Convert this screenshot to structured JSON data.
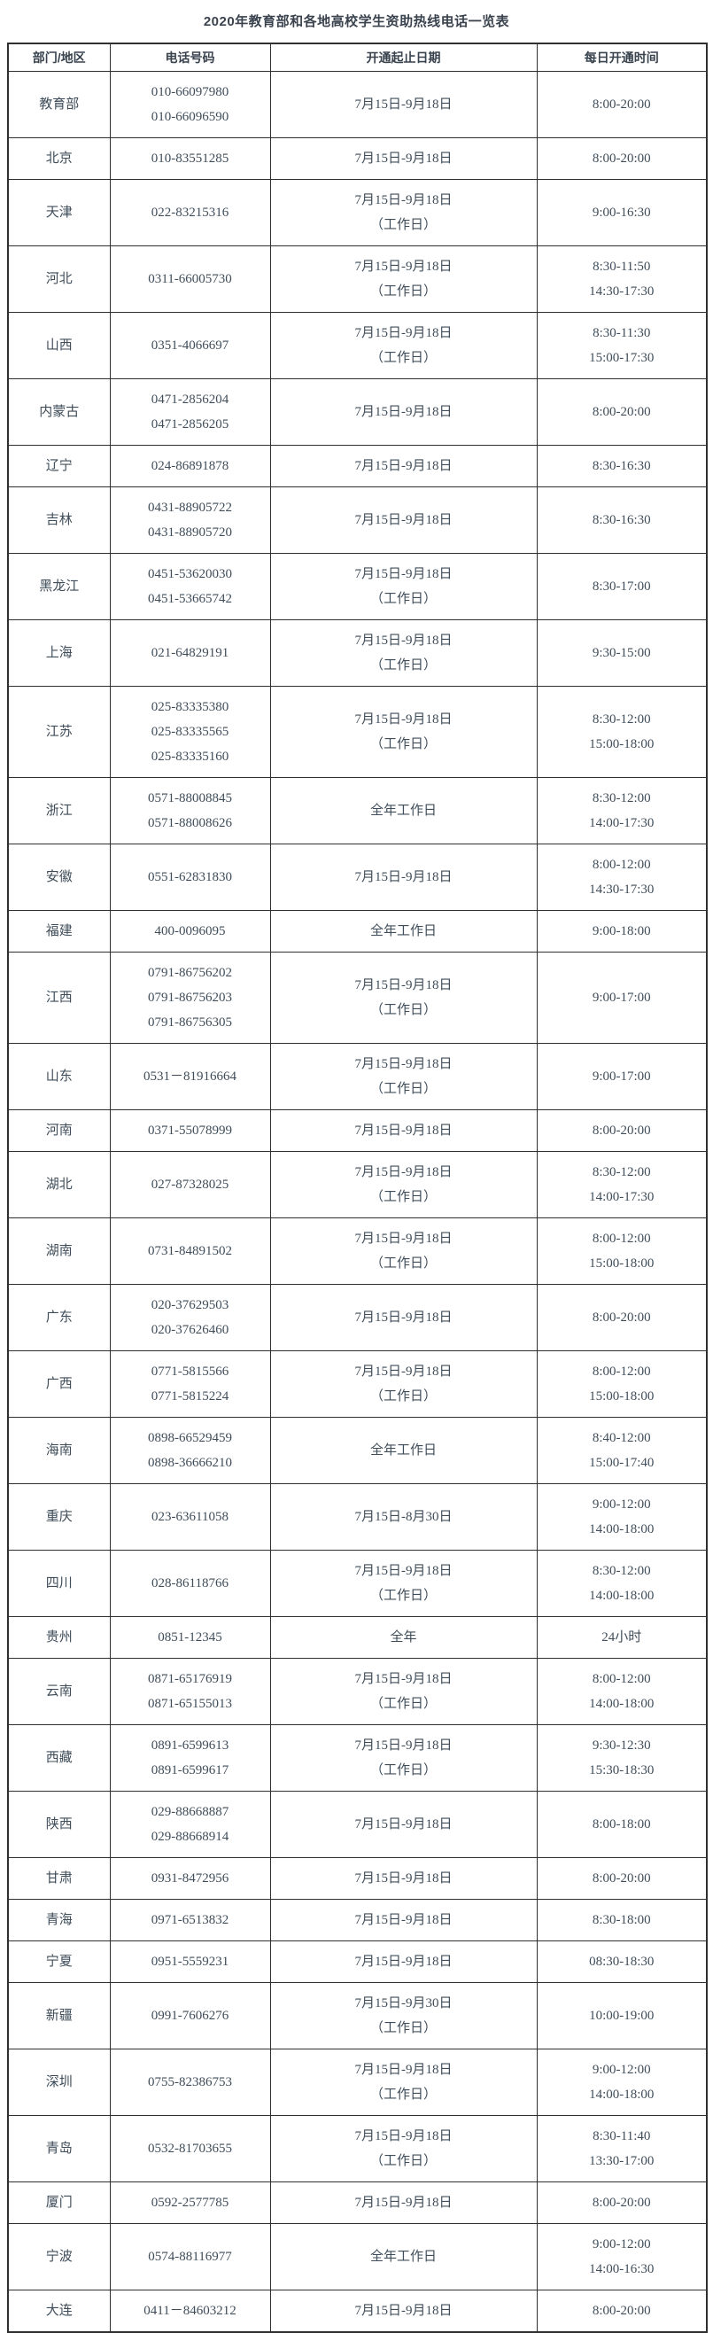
{
  "title": "2020年教育部和各地高校学生资助热线电话一览表",
  "colors": {
    "text": "#3f4d5a",
    "title_text": "#39434e",
    "border": "#2f2f2f",
    "background": "#ffffff"
  },
  "table": {
    "headers": [
      "部门/地区",
      "电话号码",
      "开通起止日期",
      "每日开通时间"
    ],
    "rows": [
      {
        "region": "教育部",
        "phones": [
          "010-66097980",
          "010-66096590"
        ],
        "dates": [
          "7月15日-9月18日"
        ],
        "times": [
          "8:00-20:00"
        ]
      },
      {
        "region": "北京",
        "phones": [
          "010-83551285"
        ],
        "dates": [
          "7月15日-9月18日"
        ],
        "times": [
          "8:00-20:00"
        ]
      },
      {
        "region": "天津",
        "phones": [
          "022-83215316"
        ],
        "dates": [
          "7月15日-9月18日",
          "（工作日）"
        ],
        "times": [
          "9:00-16:30"
        ]
      },
      {
        "region": "河北",
        "phones": [
          "0311-66005730"
        ],
        "dates": [
          "7月15日-9月18日",
          "（工作日）"
        ],
        "times": [
          "8:30-11:50",
          "14:30-17:30"
        ]
      },
      {
        "region": "山西",
        "phones": [
          "0351-4066697"
        ],
        "dates": [
          "7月15日-9月18日",
          "（工作日）"
        ],
        "times": [
          "8:30-11:30",
          "15:00-17:30"
        ]
      },
      {
        "region": "内蒙古",
        "phones": [
          "0471-2856204",
          "0471-2856205"
        ],
        "dates": [
          "7月15日-9月18日"
        ],
        "times": [
          "8:00-20:00"
        ]
      },
      {
        "region": "辽宁",
        "phones": [
          "024-86891878"
        ],
        "dates": [
          "7月15日-9月18日"
        ],
        "times": [
          "8:30-16:30"
        ]
      },
      {
        "region": "吉林",
        "phones": [
          "0431-88905722",
          "0431-88905720"
        ],
        "dates": [
          "7月15日-9月18日"
        ],
        "times": [
          "8:30-16:30"
        ]
      },
      {
        "region": "黑龙江",
        "phones": [
          "0451-53620030",
          "0451-53665742"
        ],
        "dates": [
          "7月15日-9月18日",
          "（工作日）"
        ],
        "times": [
          "8:30-17:00"
        ]
      },
      {
        "region": "上海",
        "phones": [
          "021-64829191"
        ],
        "dates": [
          "7月15日-9月18日",
          "（工作日）"
        ],
        "times": [
          "9:30-15:00"
        ]
      },
      {
        "region": "江苏",
        "phones": [
          "025-83335380",
          "025-83335565",
          "025-83335160"
        ],
        "dates": [
          "7月15日-9月18日",
          "（工作日）"
        ],
        "times": [
          "8:30-12:00",
          "15:00-18:00"
        ]
      },
      {
        "region": "浙江",
        "phones": [
          "0571-88008845",
          "0571-88008626"
        ],
        "dates": [
          "全年工作日"
        ],
        "times": [
          "8:30-12:00",
          "14:00-17:30"
        ]
      },
      {
        "region": "安徽",
        "phones": [
          "0551-62831830"
        ],
        "dates": [
          "7月15日-9月18日"
        ],
        "times": [
          "8:00-12:00",
          "14:30-17:30"
        ]
      },
      {
        "region": "福建",
        "phones": [
          "400-0096095"
        ],
        "dates": [
          "全年工作日"
        ],
        "times": [
          "9:00-18:00"
        ]
      },
      {
        "region": "江西",
        "phones": [
          "0791-86756202",
          "0791-86756203",
          "0791-86756305"
        ],
        "dates": [
          "7月15日-9月18日",
          "（工作日）"
        ],
        "times": [
          "9:00-17:00"
        ]
      },
      {
        "region": "山东",
        "phones": [
          "0531－81916664"
        ],
        "dates": [
          "7月15日-9月18日",
          "（工作日）"
        ],
        "times": [
          "9:00-17:00"
        ]
      },
      {
        "region": "河南",
        "phones": [
          "0371-55078999"
        ],
        "dates": [
          "7月15日-9月18日"
        ],
        "times": [
          "8:00-20:00"
        ]
      },
      {
        "region": "湖北",
        "phones": [
          "027-87328025"
        ],
        "dates": [
          "7月15日-9月18日",
          "（工作日）"
        ],
        "times": [
          "8:30-12:00",
          "14:00-17:30"
        ]
      },
      {
        "region": "湖南",
        "phones": [
          "0731-84891502"
        ],
        "dates": [
          "7月15日-9月18日",
          "（工作日）"
        ],
        "times": [
          "8:00-12:00",
          "15:00-18:00"
        ]
      },
      {
        "region": "广东",
        "phones": [
          "020-37629503",
          "020-37626460"
        ],
        "dates": [
          "7月15日-9月18日"
        ],
        "times": [
          "8:00-20:00"
        ]
      },
      {
        "region": "广西",
        "phones": [
          "0771-5815566",
          "0771-5815224"
        ],
        "dates": [
          "7月15日-9月18日",
          "（工作日）"
        ],
        "times": [
          "8:00-12:00",
          "15:00-18:00"
        ]
      },
      {
        "region": "海南",
        "phones": [
          "0898-66529459",
          "0898-36666210"
        ],
        "dates": [
          "全年工作日"
        ],
        "times": [
          "8:40-12:00",
          "15:00-17:40"
        ]
      },
      {
        "region": "重庆",
        "phones": [
          "023-63611058"
        ],
        "dates": [
          "7月15日-8月30日"
        ],
        "times": [
          "9:00-12:00",
          "14:00-18:00"
        ]
      },
      {
        "region": "四川",
        "phones": [
          "028-86118766"
        ],
        "dates": [
          "7月15日-9月18日",
          "（工作日）"
        ],
        "times": [
          "8:30-12:00",
          "14:00-18:00"
        ]
      },
      {
        "region": "贵州",
        "phones": [
          "0851-12345"
        ],
        "dates": [
          "全年"
        ],
        "times": [
          "24小时"
        ]
      },
      {
        "region": "云南",
        "phones": [
          "0871-65176919",
          "0871-65155013"
        ],
        "dates": [
          "7月15日-9月18日",
          "（工作日）"
        ],
        "times": [
          "8:00-12:00",
          "14:00-18:00"
        ]
      },
      {
        "region": "西藏",
        "phones": [
          "0891-6599613",
          "0891-6599617"
        ],
        "dates": [
          "7月15日-9月18日",
          "（工作日）"
        ],
        "times": [
          "9:30-12:30",
          "15:30-18:30"
        ]
      },
      {
        "region": "陕西",
        "phones": [
          "029-88668887",
          "029-88668914"
        ],
        "dates": [
          "7月15日-9月18日"
        ],
        "times": [
          "8:00-18:00"
        ]
      },
      {
        "region": "甘肃",
        "phones": [
          "0931-8472956"
        ],
        "dates": [
          "7月15日-9月18日"
        ],
        "times": [
          "8:00-20:00"
        ]
      },
      {
        "region": "青海",
        "phones": [
          "0971-6513832"
        ],
        "dates": [
          "7月15日-9月18日"
        ],
        "times": [
          "8:30-18:00"
        ]
      },
      {
        "region": "宁夏",
        "phones": [
          "0951-5559231"
        ],
        "dates": [
          "7月15日-9月18日"
        ],
        "times": [
          "08:30-18:30"
        ]
      },
      {
        "region": "新疆",
        "phones": [
          "0991-7606276"
        ],
        "dates": [
          "7月15日-9月30日",
          "（工作日）"
        ],
        "times": [
          "10:00-19:00"
        ]
      },
      {
        "region": "深圳",
        "phones": [
          "0755-82386753"
        ],
        "dates": [
          "7月15日-9月18日",
          "（工作日）"
        ],
        "times": [
          "9:00-12:00",
          "14:00-18:00"
        ]
      },
      {
        "region": "青岛",
        "phones": [
          "0532-81703655"
        ],
        "dates": [
          "7月15日-9月18日",
          "（工作日）"
        ],
        "times": [
          "8:30-11:40",
          "13:30-17:00"
        ]
      },
      {
        "region": "厦门",
        "phones": [
          "0592-2577785"
        ],
        "dates": [
          "7月15日-9月18日"
        ],
        "times": [
          "8:00-20:00"
        ]
      },
      {
        "region": "宁波",
        "phones": [
          "0574-88116977"
        ],
        "dates": [
          "全年工作日"
        ],
        "times": [
          "9:00-12:00",
          "14:00-16:30"
        ]
      },
      {
        "region": "大连",
        "phones": [
          "0411－84603212"
        ],
        "dates": [
          "7月15日-9月18日"
        ],
        "times": [
          "8:00-20:00"
        ]
      }
    ]
  }
}
